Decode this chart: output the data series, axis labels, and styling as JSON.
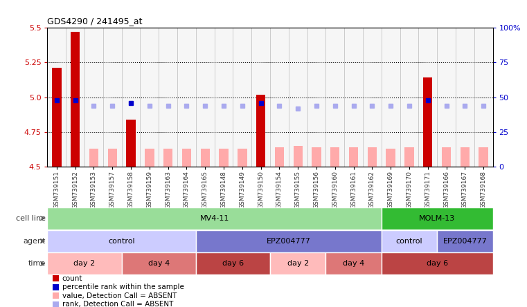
{
  "title": "GDS4290 / 241495_at",
  "samples": [
    "GSM739151",
    "GSM739152",
    "GSM739153",
    "GSM739157",
    "GSM739158",
    "GSM739159",
    "GSM739163",
    "GSM739164",
    "GSM739165",
    "GSM739148",
    "GSM739149",
    "GSM739150",
    "GSM739154",
    "GSM739155",
    "GSM739156",
    "GSM739160",
    "GSM739161",
    "GSM739162",
    "GSM739169",
    "GSM739170",
    "GSM739171",
    "GSM739166",
    "GSM739167",
    "GSM739168"
  ],
  "count_bar_heights": [
    5.21,
    5.47,
    0,
    0,
    4.84,
    0,
    0,
    0,
    0,
    0,
    0,
    5.02,
    0,
    0,
    0,
    0,
    0,
    0,
    0,
    0,
    5.14,
    0,
    0,
    0
  ],
  "absent_bar_heights": [
    0,
    0,
    4.63,
    4.63,
    0,
    4.63,
    4.63,
    4.63,
    4.63,
    4.63,
    4.63,
    0,
    4.64,
    4.65,
    4.64,
    4.64,
    4.64,
    4.64,
    4.63,
    4.64,
    0,
    4.64,
    4.64,
    4.64
  ],
  "rank_values": [
    48,
    48,
    null,
    null,
    46,
    null,
    null,
    null,
    null,
    null,
    null,
    46,
    null,
    null,
    null,
    null,
    null,
    null,
    null,
    null,
    48,
    null,
    null,
    null
  ],
  "rank_absent_values": [
    null,
    null,
    44,
    44,
    null,
    44,
    44,
    44,
    44,
    44,
    44,
    null,
    44,
    42,
    44,
    44,
    44,
    44,
    44,
    44,
    null,
    44,
    44,
    44
  ],
  "ylim": [
    4.5,
    5.5
  ],
  "y2lim": [
    0,
    100
  ],
  "yticks": [
    4.5,
    4.75,
    5.0,
    5.25,
    5.5
  ],
  "y2ticks": [
    0,
    25,
    50,
    75,
    100
  ],
  "hlines": [
    4.75,
    5.0,
    5.25
  ],
  "bar_color": "#cc0000",
  "absent_bar_color": "#ffaaaa",
  "rank_color": "#0000cc",
  "rank_absent_color": "#aaaaee",
  "cell_line_segments": [
    {
      "start": 0,
      "end": 18,
      "color": "#99dd99",
      "label": "MV4-11"
    },
    {
      "start": 18,
      "end": 24,
      "color": "#33bb33",
      "label": "MOLM-13"
    }
  ],
  "agent_segments": [
    {
      "start": 0,
      "end": 8,
      "color": "#ccccff",
      "label": "control"
    },
    {
      "start": 8,
      "end": 18,
      "color": "#7777cc",
      "label": "EPZ004777"
    },
    {
      "start": 18,
      "end": 21,
      "color": "#ccccff",
      "label": "control"
    },
    {
      "start": 21,
      "end": 24,
      "color": "#7777cc",
      "label": "EPZ004777"
    }
  ],
  "time_segments": [
    {
      "start": 0,
      "end": 4,
      "color": "#ffbbbb",
      "label": "day 2"
    },
    {
      "start": 4,
      "end": 8,
      "color": "#dd7777",
      "label": "day 4"
    },
    {
      "start": 8,
      "end": 12,
      "color": "#bb4444",
      "label": "day 6"
    },
    {
      "start": 12,
      "end": 15,
      "color": "#ffbbbb",
      "label": "day 2"
    },
    {
      "start": 15,
      "end": 18,
      "color": "#dd7777",
      "label": "day 4"
    },
    {
      "start": 18,
      "end": 24,
      "color": "#bb4444",
      "label": "day 6"
    }
  ],
  "row_labels": [
    "cell line",
    "agent",
    "time"
  ],
  "legend_items": [
    {
      "color": "#cc0000",
      "label": "count"
    },
    {
      "color": "#0000cc",
      "label": "percentile rank within the sample"
    },
    {
      "color": "#ffaaaa",
      "label": "value, Detection Call = ABSENT"
    },
    {
      "color": "#aaaaee",
      "label": "rank, Detection Call = ABSENT"
    }
  ]
}
